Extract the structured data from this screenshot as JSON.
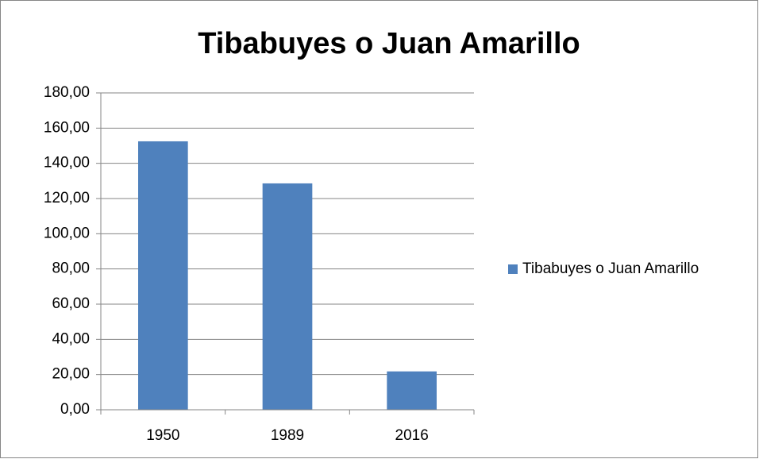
{
  "chart_data": {
    "type": "bar",
    "title": "Tibabuyes o Juan Amarillo",
    "categories": [
      "1950",
      "1989",
      "2016"
    ],
    "series": [
      {
        "name": "Tibabuyes o Juan Amarillo",
        "color": "#4f81bd",
        "values": [
          152.5,
          128.6,
          21.8
        ]
      }
    ],
    "ylim": [
      0,
      180
    ],
    "yticks": [
      {
        "value": 0,
        "label": "0,00"
      },
      {
        "value": 20,
        "label": "20,00"
      },
      {
        "value": 40,
        "label": "40,00"
      },
      {
        "value": 60,
        "label": "60,00"
      },
      {
        "value": 80,
        "label": "80,00"
      },
      {
        "value": 100,
        "label": "100,00"
      },
      {
        "value": 120,
        "label": "120,00"
      },
      {
        "value": 140,
        "label": "140,00"
      },
      {
        "value": 160,
        "label": "160,00"
      },
      {
        "value": 180,
        "label": "180,00"
      }
    ],
    "grid": true,
    "legend": "right"
  }
}
